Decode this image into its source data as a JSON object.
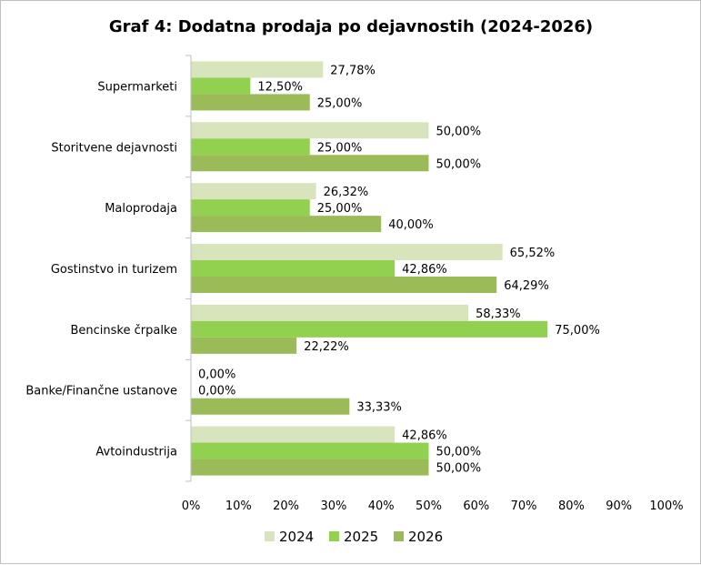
{
  "chart_data": {
    "type": "bar",
    "orientation": "horizontal",
    "title": "Graf 4: Dodatna prodaja po dejavnostih (2024-2026)",
    "categories": [
      "Supermarketi",
      "Storitvene dejavnosti",
      "Maloprodaja",
      "Gostinstvo in turizem",
      "Bencinske črpalke",
      "Banke/Finančne ustanove",
      "Avtoindustrija"
    ],
    "series": [
      {
        "name": "2024",
        "color": "#d8e4bc",
        "values": [
          27.78,
          50.0,
          26.32,
          65.52,
          58.33,
          0.0,
          42.86
        ],
        "labels": [
          "27,78%",
          "50,00%",
          "26,32%",
          "65,52%",
          "58,33%",
          "0,00%",
          "42,86%"
        ]
      },
      {
        "name": "2025",
        "color": "#92d050",
        "values": [
          12.5,
          25.0,
          25.0,
          42.86,
          75.0,
          0.0,
          50.0
        ],
        "labels": [
          "12,50%",
          "25,00%",
          "25,00%",
          "42,86%",
          "75,00%",
          "0,00%",
          "50,00%"
        ]
      },
      {
        "name": "2026",
        "color": "#9bbb59",
        "values": [
          25.0,
          50.0,
          40.0,
          64.29,
          22.22,
          33.33,
          50.0
        ],
        "labels": [
          "25,00%",
          "50,00%",
          "40,00%",
          "64,29%",
          "22,22%",
          "33,33%",
          "50,00%"
        ]
      }
    ],
    "xlim": [
      0,
      100
    ],
    "xticks": [
      "0%",
      "10%",
      "20%",
      "30%",
      "40%",
      "50%",
      "60%",
      "70%",
      "80%",
      "90%",
      "100%"
    ],
    "grid": false,
    "legend": "bottom"
  }
}
